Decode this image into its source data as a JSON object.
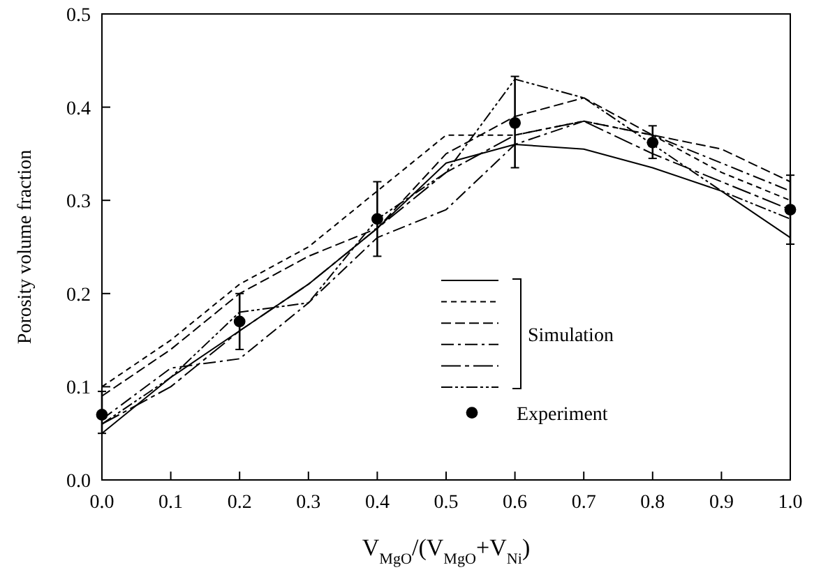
{
  "chart_data": {
    "type": "line",
    "xlabel": "V$_{MgO}$/(V$_{MgO}$+V$_{Ni}$)",
    "ylabel": "Porosity volume fraction",
    "x": [
      0,
      0.1,
      0.2,
      0.3,
      0.4,
      0.5,
      0.6,
      0.7,
      0.8,
      0.9,
      1.0
    ],
    "xlim": [
      0,
      1
    ],
    "xticks": [
      {
        "value": 0,
        "label": "0.0"
      },
      {
        "value": 0.1,
        "label": "0.1"
      },
      {
        "value": 0.2,
        "label": "0.2"
      },
      {
        "value": 0.3,
        "label": "0.3"
      },
      {
        "value": 0.4,
        "label": "0.4"
      },
      {
        "value": 0.5,
        "label": "0.5"
      },
      {
        "value": 0.6,
        "label": "0.6"
      },
      {
        "value": 0.7,
        "label": "0.7"
      },
      {
        "value": 0.8,
        "label": "0.8"
      },
      {
        "value": 0.9,
        "label": "0.9"
      },
      {
        "value": 1,
        "label": "1.0"
      }
    ],
    "ylim": [
      0,
      0.5
    ],
    "yticks": [
      {
        "value": 0,
        "label": "0.0"
      },
      {
        "value": 0.1,
        "label": "0.1"
      },
      {
        "value": 0.2,
        "label": "0.2"
      },
      {
        "value": 0.3,
        "label": "0.3"
      },
      {
        "value": 0.4,
        "label": "0.4"
      },
      {
        "value": 0.5,
        "label": "0.5"
      }
    ],
    "grid": false,
    "legend": "bottom",
    "marker": "none",
    "annotations": [
      "Simulation"
    ],
    "series": [
      {
        "color": "#000000",
        "line_style": "solid",
        "values": [
          0.05,
          0.11,
          0.16,
          0.21,
          0.27,
          0.34,
          0.36,
          0.355,
          0.335,
          0.31,
          0.26
        ]
      },
      {
        "color": "#000000",
        "line_style": "dotted",
        "values": [
          0.1,
          0.15,
          0.21,
          0.25,
          0.31,
          0.37,
          0.37,
          0.385,
          0.37,
          0.33,
          0.3
        ]
      },
      {
        "color": "#000000",
        "line_style": "dashed",
        "values": [
          0.09,
          0.14,
          0.2,
          0.24,
          0.27,
          0.35,
          0.39,
          0.41,
          0.37,
          0.355,
          0.32
        ]
      },
      {
        "color": "#000000",
        "line_style": "dashdot",
        "values": [
          0.065,
          0.12,
          0.13,
          0.19,
          0.26,
          0.29,
          0.36,
          0.385,
          0.37,
          0.34,
          0.31
        ]
      },
      {
        "color": "#000000",
        "line_style": "longdashdot",
        "values": [
          0.06,
          0.1,
          0.16,
          0.21,
          0.27,
          0.33,
          0.37,
          0.385,
          0.35,
          0.32,
          0.29
        ]
      },
      {
        "color": "#000000",
        "line_style": "dashdotdot",
        "values": [
          0.06,
          0.11,
          0.18,
          0.19,
          0.28,
          0.33,
          0.43,
          0.41,
          0.36,
          0.31,
          0.28
        ]
      },
      {
        "type": "scatter",
        "name": "Experiment",
        "color": "#000000",
        "marker": "circle",
        "x": [
          0,
          0.2,
          0.4,
          0.6,
          0.8,
          1.0
        ],
        "values": [
          0.07,
          0.17,
          0.28,
          0.383,
          0.362,
          0.29
        ],
        "errors": [
          [
            0.05,
            0.095
          ],
          [
            0.14,
            0.2
          ],
          [
            0.24,
            0.32
          ],
          [
            0.335,
            0.433
          ],
          [
            0.345,
            0.38
          ],
          [
            0.253,
            0.327
          ]
        ]
      }
    ]
  }
}
